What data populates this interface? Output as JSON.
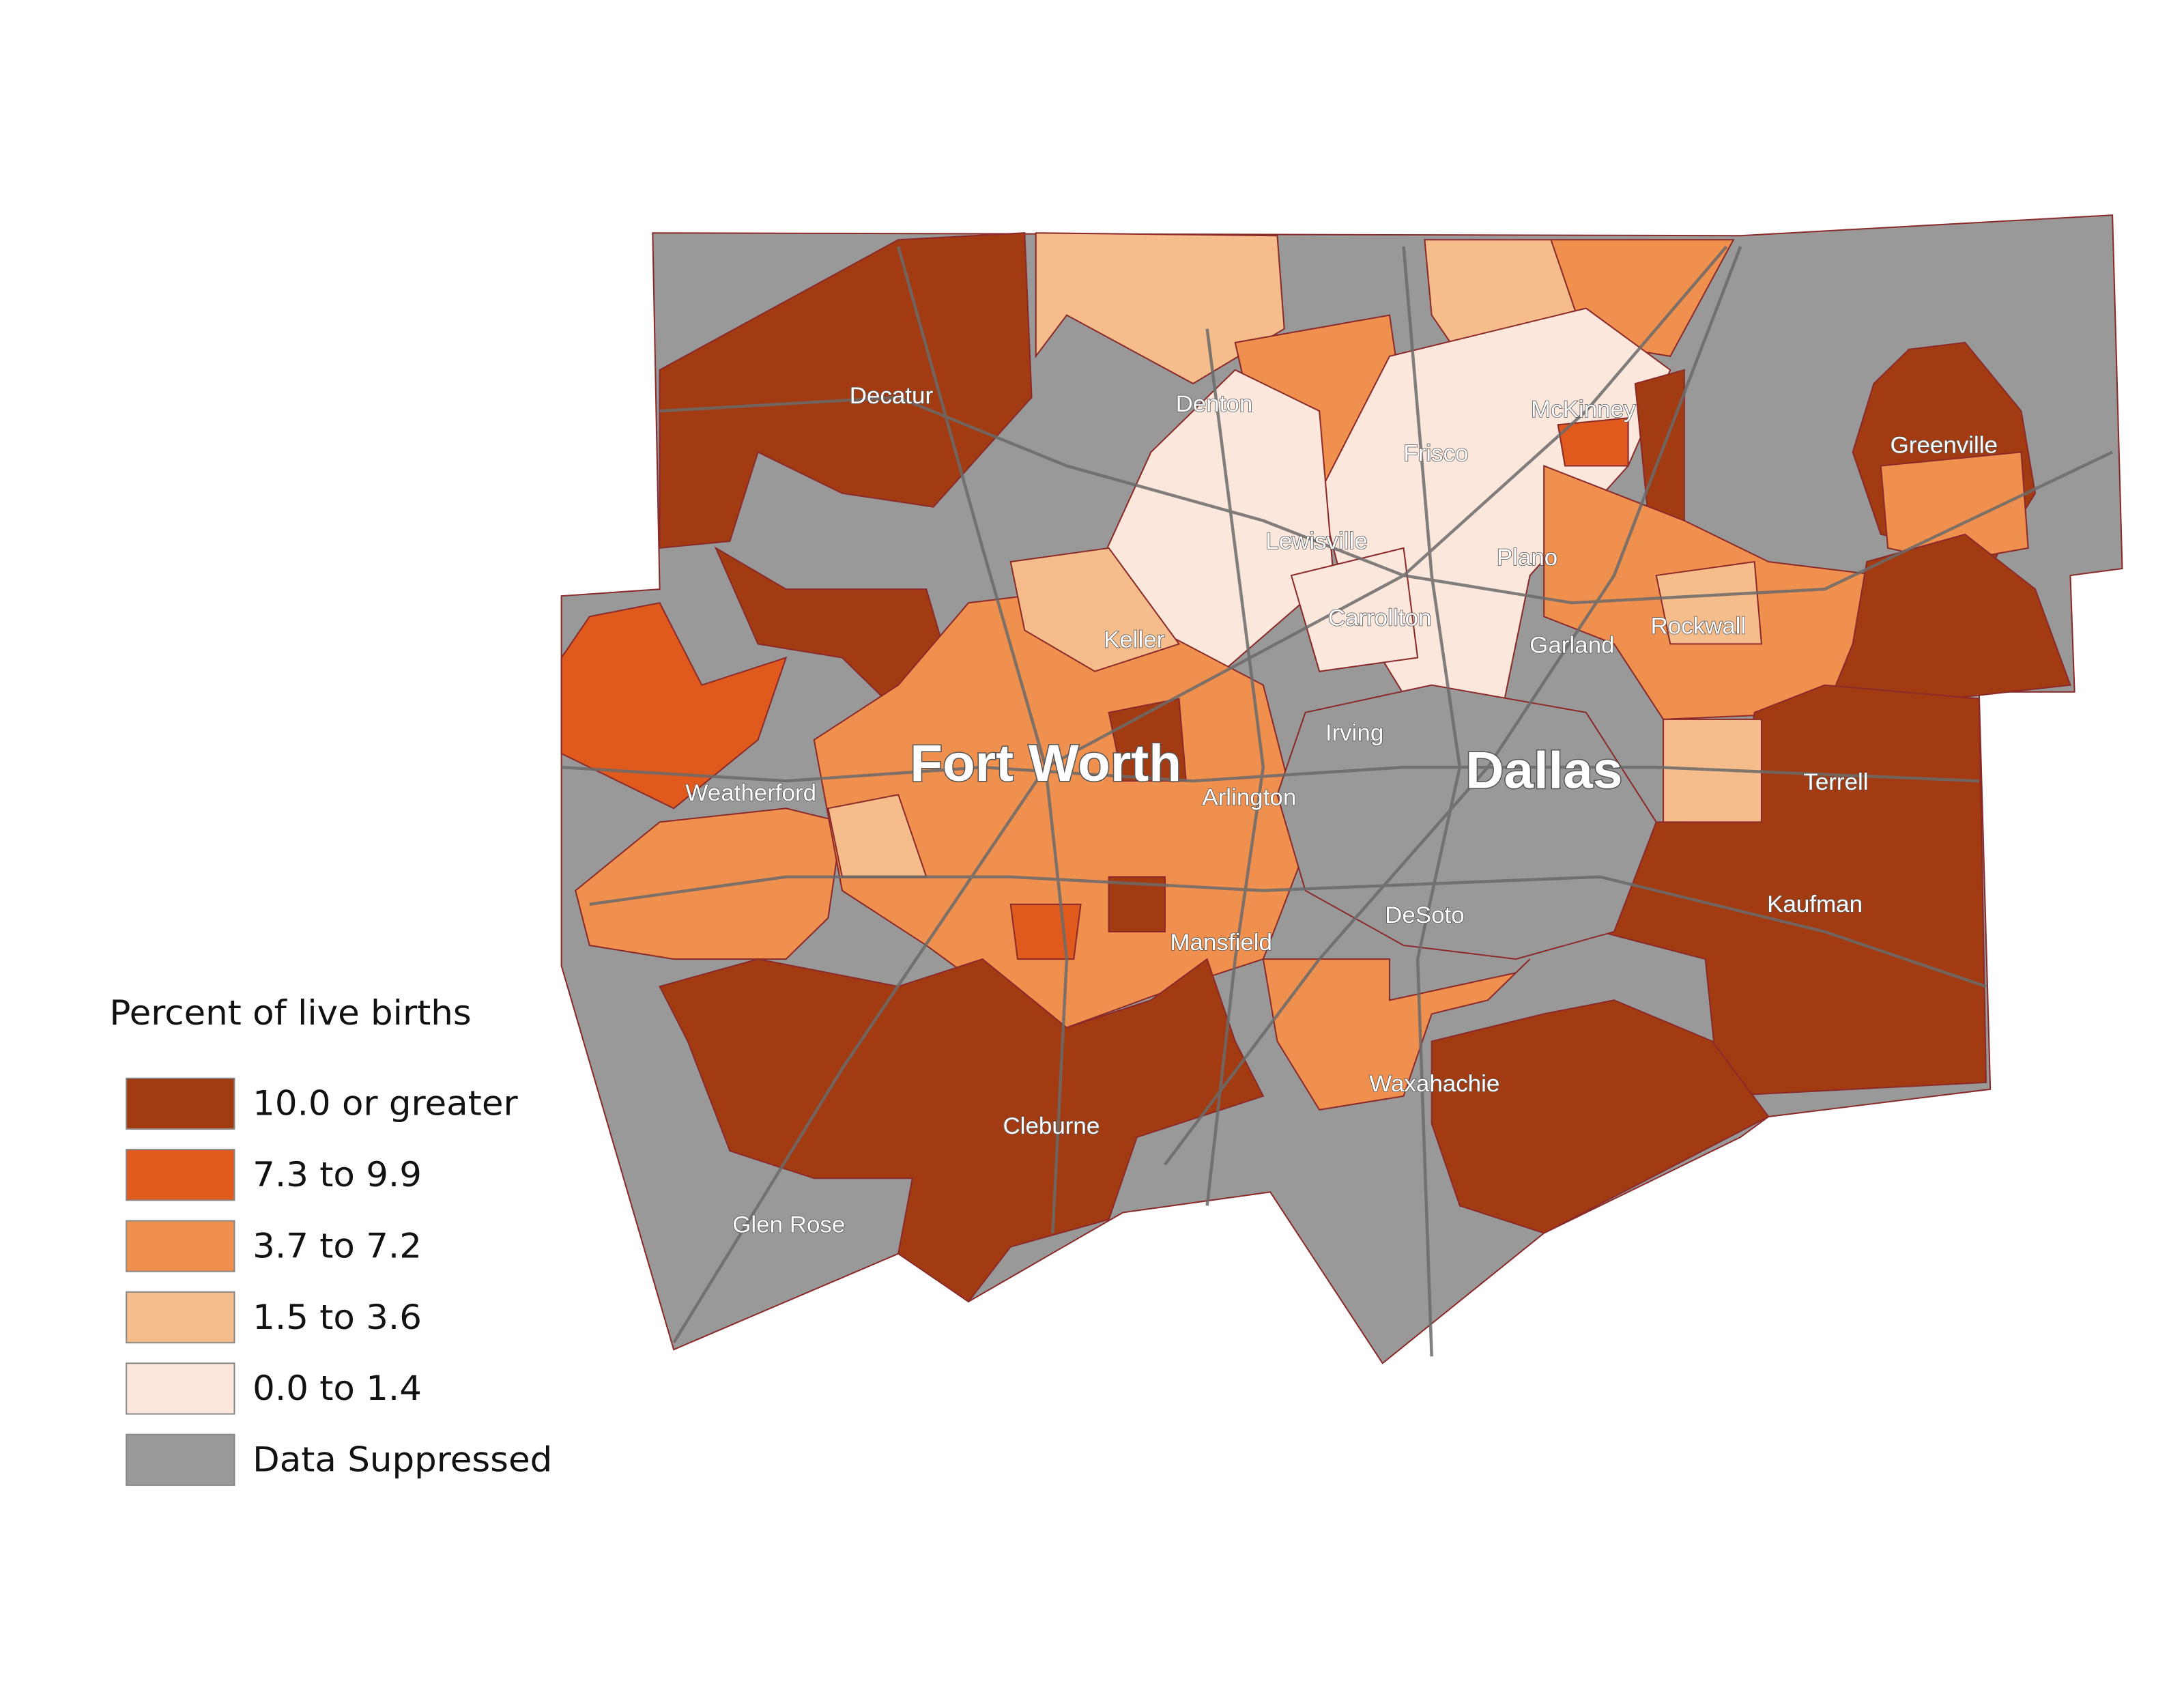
{
  "legend": {
    "title": "Percent of live births",
    "items": [
      {
        "label": "10.0 or greater",
        "color": "#a23a12"
      },
      {
        "label": "7.3 to 9.9",
        "color": "#e0591d"
      },
      {
        "label": "3.7 to 7.2",
        "color": "#f0904e"
      },
      {
        "label": "1.5 to 3.6",
        "color": "#f5bd8b"
      },
      {
        "label": "0.0 to 1.4",
        "color": "#fbe7dc"
      },
      {
        "label": "Data Suppressed",
        "color": "#999999"
      }
    ]
  },
  "cities": [
    "Decatur",
    "Denton",
    "McKinney",
    "Frisco",
    "Greenville",
    "Lewisville",
    "Plano",
    "Carrollton",
    "Rockwall",
    "Keller",
    "Garland",
    "Irving",
    "Fort Worth",
    "Dallas",
    "Weatherford",
    "Arlington",
    "Terrell",
    "Kaufman",
    "DeSoto",
    "Mansfield",
    "Waxahachie",
    "Cleburne",
    "Glen Rose"
  ]
}
